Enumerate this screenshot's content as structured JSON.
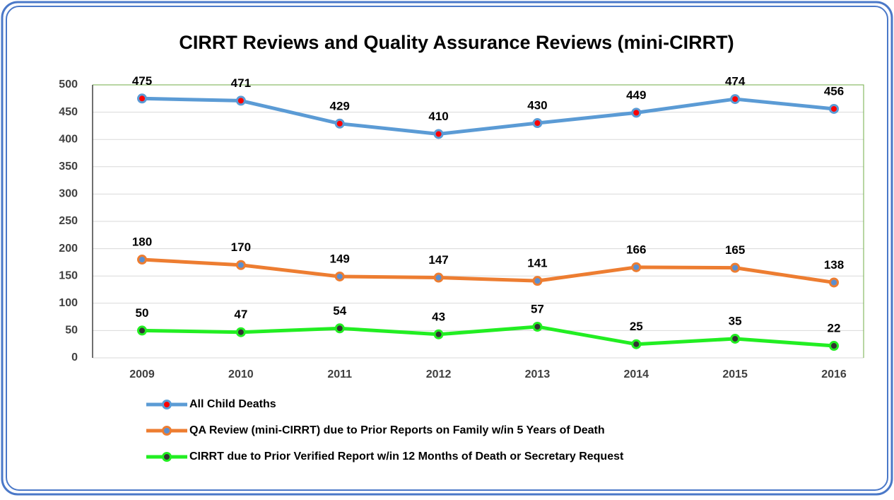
{
  "chart_data": {
    "type": "line",
    "title": "CIRRT Reviews and Quality Assurance Reviews (mini-CIRRT)",
    "categories": [
      "2009",
      "2010",
      "2011",
      "2012",
      "2013",
      "2014",
      "2015",
      "2016"
    ],
    "series": [
      {
        "name": "All Child Deaths",
        "color": "#5b9bd5",
        "marker_fill": "#ff0000",
        "values": [
          475,
          471,
          429,
          410,
          430,
          449,
          474,
          456
        ]
      },
      {
        "name": "QA Review (mini-CIRRT) due to Prior Reports on Family w/in 5 Years of Death",
        "color": "#ed7d31",
        "marker_fill": "#5b8fd0",
        "values": [
          180,
          170,
          149,
          147,
          141,
          166,
          165,
          138
        ]
      },
      {
        "name": "CIRRT due to Prior Verified Report w/in 12 Months of Death or Secretary Request",
        "color": "#22ee22",
        "marker_fill": "#333333",
        "values": [
          50,
          47,
          54,
          43,
          57,
          25,
          35,
          22
        ]
      }
    ],
    "ylim": [
      0,
      500
    ],
    "yticks": [
      0,
      50,
      100,
      150,
      200,
      250,
      300,
      350,
      400,
      450,
      500
    ],
    "grid": true,
    "legend": "bottom"
  }
}
